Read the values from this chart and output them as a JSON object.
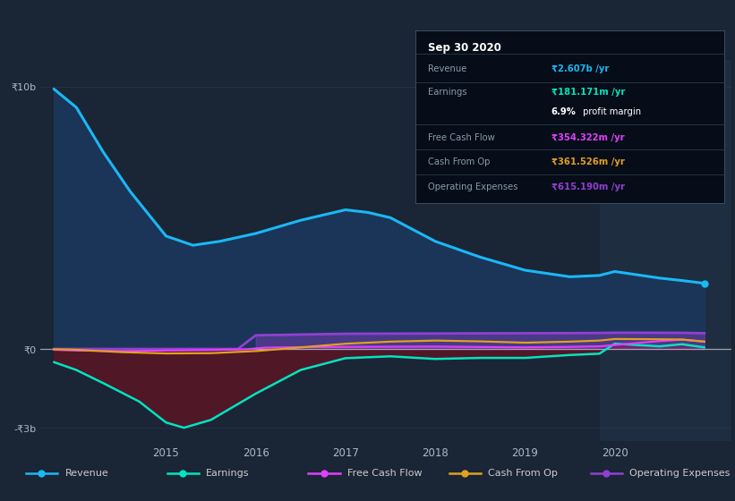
{
  "bg_color": "#1a2535",
  "plot_bg_color": "#1a2535",
  "shade_color": "#1e2d40",
  "grid_color": "#2a3a4a",
  "zero_line_color": "#c0c0c0",
  "ylim": [
    -3500000000,
    11000000000
  ],
  "xlim_start": 2013.6,
  "xlim_end": 2021.3,
  "shade_start": 2019.83,
  "revenue_color": "#1ab8f5",
  "revenue_fill_color": "#1a3558",
  "earnings_color": "#00e5c0",
  "earnings_fill_color": "#5a1525",
  "fcf_color": "#e040fb",
  "cashop_color": "#e0a020",
  "opex_color": "#9040d0",
  "revenue_x": [
    2013.75,
    2014.0,
    2014.3,
    2014.6,
    2015.0,
    2015.3,
    2015.6,
    2016.0,
    2016.5,
    2017.0,
    2017.25,
    2017.5,
    2018.0,
    2018.5,
    2019.0,
    2019.5,
    2019.83,
    2020.0,
    2020.3,
    2020.5,
    2020.75,
    2021.0
  ],
  "revenue_y": [
    9900000000,
    9200000000,
    7500000000,
    6000000000,
    4300000000,
    3950000000,
    4100000000,
    4400000000,
    4900000000,
    5300000000,
    5200000000,
    5000000000,
    4100000000,
    3500000000,
    3000000000,
    2750000000,
    2800000000,
    2950000000,
    2800000000,
    2700000000,
    2607000000,
    2500000000
  ],
  "earnings_x": [
    2013.75,
    2014.0,
    2014.3,
    2014.7,
    2015.0,
    2015.2,
    2015.5,
    2016.0,
    2016.5,
    2017.0,
    2017.5,
    2018.0,
    2018.5,
    2019.0,
    2019.5,
    2019.83,
    2020.0,
    2020.5,
    2020.75,
    2021.0
  ],
  "earnings_y": [
    -500000000,
    -800000000,
    -1300000000,
    -2000000000,
    -2800000000,
    -3000000000,
    -2700000000,
    -1700000000,
    -800000000,
    -350000000,
    -280000000,
    -380000000,
    -340000000,
    -340000000,
    -230000000,
    -180000000,
    200000000,
    100000000,
    181171000,
    60000000
  ],
  "fcf_x": [
    2013.75,
    2014.0,
    2014.5,
    2015.0,
    2015.5,
    2015.9,
    2016.1,
    2016.5,
    2017.0,
    2018.0,
    2019.0,
    2019.5,
    2019.83,
    2020.0,
    2020.5,
    2020.75,
    2021.0
  ],
  "fcf_y": [
    -30000000,
    -60000000,
    -80000000,
    -60000000,
    -40000000,
    -10000000,
    50000000,
    70000000,
    80000000,
    90000000,
    60000000,
    80000000,
    100000000,
    150000000,
    300000000,
    354322000,
    280000000
  ],
  "cashop_x": [
    2013.75,
    2014.0,
    2014.5,
    2015.0,
    2015.5,
    2016.0,
    2016.5,
    2017.0,
    2017.5,
    2018.0,
    2018.5,
    2019.0,
    2019.5,
    2019.83,
    2020.0,
    2020.5,
    2020.75,
    2021.0
  ],
  "cashop_y": [
    -10000000,
    -30000000,
    -120000000,
    -170000000,
    -160000000,
    -80000000,
    60000000,
    200000000,
    280000000,
    320000000,
    290000000,
    240000000,
    280000000,
    320000000,
    380000000,
    370000000,
    361526000,
    280000000
  ],
  "opex_x": [
    2013.75,
    2014.0,
    2015.0,
    2015.8,
    2016.0,
    2016.5,
    2017.0,
    2018.0,
    2019.0,
    2019.5,
    2019.83,
    2020.0,
    2020.5,
    2020.75,
    2021.0
  ],
  "opex_y": [
    0,
    0,
    0,
    0,
    520000000,
    550000000,
    580000000,
    590000000,
    600000000,
    605000000,
    610000000,
    620000000,
    618000000,
    615190000,
    600000000
  ],
  "xtick_labels": [
    "2015",
    "2016",
    "2017",
    "2018",
    "2019",
    "2020"
  ],
  "xtick_positions": [
    2015,
    2016,
    2017,
    2018,
    2019,
    2020
  ],
  "ytick_neg": -3000000000,
  "ytick_neg_label": "-₹3b",
  "zero_label": "₹0",
  "top_label": "₹10b",
  "top_value": 10000000000,
  "legend_items": [
    {
      "label": "Revenue",
      "color": "#1ab8f5"
    },
    {
      "label": "Earnings",
      "color": "#00e5c0"
    },
    {
      "label": "Free Cash Flow",
      "color": "#e040fb"
    },
    {
      "label": "Cash From Op",
      "color": "#e0a020"
    },
    {
      "label": "Operating Expenses",
      "color": "#9040d0"
    }
  ]
}
